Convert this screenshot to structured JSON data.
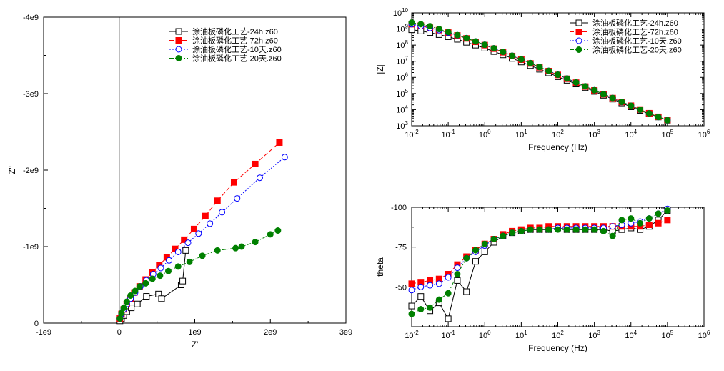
{
  "legend_labels": [
    "涂油板磷化工艺-24h.z60",
    "涂油板磷化工艺-72h.z60",
    "涂油板磷化工艺-10天.z60",
    "涂油板磷化工艺-20天.z60"
  ],
  "series_style": [
    {
      "color": "#000000",
      "marker": "square-open",
      "dash": ""
    },
    {
      "color": "#ff0000",
      "marker": "square-filled",
      "dash": "6,3"
    },
    {
      "color": "#0000ff",
      "marker": "circle-open",
      "dash": "2,2"
    },
    {
      "color": "#008000",
      "marker": "circle-filled",
      "dash": "6,2,2,2"
    }
  ],
  "chart_data": [
    {
      "type": "scatter",
      "xlabel": "Z'",
      "ylabel": "Z''",
      "xlim": [
        -1000000000.0,
        3000000000.0
      ],
      "ylim": [
        0,
        -4000000000.0
      ],
      "x_ticks": [
        -1000000000.0,
        0,
        1000000000.0,
        2000000000.0,
        3000000000.0
      ],
      "x_tick_labels": [
        "-1e9",
        "0",
        "1e9",
        "2e9",
        "3e9"
      ],
      "y_ticks": [
        0,
        -1000000000.0,
        -2000000000.0,
        -3000000000.0,
        -4000000000.0
      ],
      "y_tick_labels": [
        "0",
        "-1e9",
        "-2e9",
        "-3e9",
        "-4e9"
      ],
      "series": [
        {
          "x": [
            10000000.0,
            30000000.0,
            60000000.0,
            100000000.0,
            160000000.0,
            240000000.0,
            360000000.0,
            520000000.0,
            560000000.0,
            820000000.0,
            840000000.0,
            880000000.0
          ],
          "y": [
            -30000000.0,
            -60000000.0,
            -100000000.0,
            -150000000.0,
            -200000000.0,
            -250000000.0,
            -350000000.0,
            -380000000.0,
            -320000000.0,
            -500000000.0,
            -550000000.0,
            -950000000.0
          ]
        },
        {
          "x": [
            10000000.0,
            30000000.0,
            60000000.0,
            100000000.0,
            150000000.0,
            200000000.0,
            270000000.0,
            350000000.0,
            440000000.0,
            530000000.0,
            630000000.0,
            740000000.0,
            860000000.0,
            990000000.0,
            1140000000.0,
            1300000000.0,
            1520000000.0,
            1800000000.0,
            2120000000.0
          ],
          "y": [
            -60000000.0,
            -120000000.0,
            -180000000.0,
            -250000000.0,
            -320000000.0,
            -400000000.0,
            -480000000.0,
            -570000000.0,
            -660000000.0,
            -760000000.0,
            -860000000.0,
            -970000000.0,
            -1090000000.0,
            -1230000000.0,
            -1400000000.0,
            -1600000000.0,
            -1840000000.0,
            -2080000000.0,
            -2360000000.0
          ]
        },
        {
          "x": [
            10000000.0,
            30000000.0,
            60000000.0,
            100000000.0,
            150000000.0,
            210000000.0,
            280000000.0,
            360000000.0,
            450000000.0,
            550000000.0,
            660000000.0,
            780000000.0,
            910000000.0,
            1050000000.0,
            1200000000.0,
            1360000000.0,
            1560000000.0,
            1860000000.0,
            2190000000.0
          ],
          "y": [
            -60000000.0,
            -120000000.0,
            -180000000.0,
            -250000000.0,
            -320000000.0,
            -400000000.0,
            -480000000.0,
            -560000000.0,
            -640000000.0,
            -720000000.0,
            -820000000.0,
            -930000000.0,
            -1050000000.0,
            -1170000000.0,
            -1300000000.0,
            -1450000000.0,
            -1630000000.0,
            -1900000000.0,
            -2170000000.0
          ]
        },
        {
          "x": [
            10000000.0,
            30000000.0,
            60000000.0,
            100000000.0,
            150000000.0,
            210000000.0,
            270000000.0,
            350000000.0,
            440000000.0,
            540000000.0,
            650000000.0,
            780000000.0,
            930000000.0,
            1100000000.0,
            1300000000.0,
            1540000000.0,
            1620000000.0,
            1800000000.0,
            2000000000.0,
            2100000000.0
          ],
          "y": [
            -60000000.0,
            -130000000.0,
            -200000000.0,
            -280000000.0,
            -360000000.0,
            -420000000.0,
            -480000000.0,
            -520000000.0,
            -580000000.0,
            -620000000.0,
            -680000000.0,
            -740000000.0,
            -800000000.0,
            -880000000.0,
            -950000000.0,
            -980000000.0,
            -1000000000.0,
            -1060000000.0,
            -1160000000.0,
            -1210000000.0
          ]
        }
      ]
    },
    {
      "type": "line",
      "scale": "log-log",
      "xlabel": "Frequency (Hz)",
      "ylabel": "|Z|",
      "xlim": [
        0.01,
        1000000
      ],
      "ylim": [
        1000,
        10000000000
      ],
      "x_tick_labels": [
        "10^-2",
        "10^-1",
        "10^0",
        "10^1",
        "10^2",
        "10^3",
        "10^4",
        "10^5",
        "10^6"
      ],
      "y_tick_labels": [
        "10^3",
        "10^4",
        "10^5",
        "10^6",
        "10^7",
        "10^8",
        "10^9",
        "10^10"
      ],
      "series": [
        {
          "x": [
            0.01,
            0.0178,
            0.0316,
            0.0562,
            0.1,
            0.178,
            0.316,
            0.562,
            1,
            1.78,
            3.16,
            5.62,
            10,
            17.8,
            31.6,
            56.2,
            100,
            178,
            316,
            562,
            1000,
            1780,
            3160,
            5620,
            10000,
            17800,
            31600,
            56200,
            100000
          ],
          "y": [
            900000000.0,
            750000000.0,
            600000000.0,
            450000000.0,
            330000000.0,
            230000000.0,
            150000000.0,
            100000000.0,
            65000000.0,
            40000000.0,
            25000000.0,
            15000000.0,
            9000000.0,
            5400000.0,
            3200000.0,
            1900000.0,
            1100000.0,
            660000.0,
            390000.0,
            230000.0,
            135000.0,
            78000.0,
            45000.0,
            26000.0,
            15000.0,
            9000.0,
            5500.0,
            3500.0,
            2200.0
          ]
        },
        {
          "x": [
            0.01,
            0.0178,
            0.0316,
            0.0562,
            0.1,
            0.178,
            0.316,
            0.562,
            1,
            1.78,
            3.16,
            5.62,
            10,
            17.8,
            31.6,
            56.2,
            100,
            178,
            316,
            562,
            1000,
            1780,
            3160,
            5620,
            10000,
            17800,
            31600,
            56200,
            100000
          ],
          "y": [
            2000000000.0,
            1600000000.0,
            1200000000.0,
            850000000.0,
            600000000.0,
            400000000.0,
            260000000.0,
            160000000.0,
            100000000.0,
            60000000.0,
            36000000.0,
            21000000.0,
            12500000.0,
            7300000.0,
            4200000.0,
            2450000.0,
            1420000.0,
            820000.0,
            470000.0,
            270000.0,
            156000.0,
            90000.0,
            52000.0,
            30000.0,
            17500.0,
            10200.0,
            6000.0,
            3600.0,
            2300.0
          ]
        },
        {
          "x": [
            0.01,
            0.0178,
            0.0316,
            0.0562,
            0.1,
            0.178,
            0.316,
            0.562,
            1,
            1.78,
            3.16,
            5.62,
            10,
            17.8,
            31.6,
            56.2,
            100,
            178,
            316,
            562,
            1000,
            1780,
            3160,
            5620,
            10000,
            17800,
            31600,
            56200,
            100000
          ],
          "y": [
            2000000000.0,
            1500000000.0,
            1150000000.0,
            850000000.0,
            600000000.0,
            410000000.0,
            270000000.0,
            170000000.0,
            105000000.0,
            63000000.0,
            38000000.0,
            22000000.0,
            13000000.0,
            7600000.0,
            4400000.0,
            2550000.0,
            1470000.0,
            850000.0,
            490000.0,
            280000.0,
            160000.0,
            92000.0,
            53000.0,
            30500.0,
            17500.0,
            10000.0,
            5900.0,
            3500.0,
            2200.0
          ]
        },
        {
          "x": [
            0.01,
            0.0178,
            0.0316,
            0.0562,
            0.1,
            0.178,
            0.316,
            0.562,
            1,
            1.78,
            3.16,
            5.62,
            10,
            17.8,
            31.6,
            56.2,
            100,
            178,
            316,
            562,
            1000,
            1780,
            3160,
            5620,
            10000,
            17800,
            31600,
            56200,
            100000
          ],
          "y": [
            2500000000.0,
            2000000000.0,
            1500000000.0,
            1000000000.0,
            650000000.0,
            420000000.0,
            270000000.0,
            170000000.0,
            105000000.0,
            63000000.0,
            38000000.0,
            22000000.0,
            13000000.0,
            7600000.0,
            4400000.0,
            2550000.0,
            1470000.0,
            850000.0,
            490000.0,
            280000.0,
            160000.0,
            92000.0,
            53000.0,
            30500.0,
            17500.0,
            10000.0,
            5900.0,
            3500.0,
            2200.0
          ]
        }
      ]
    },
    {
      "type": "line",
      "scale": "log-x",
      "xlabel": "Frequency (Hz)",
      "ylabel": "theta",
      "xlim": [
        0.01,
        1000000
      ],
      "ylim": [
        -25,
        -100
      ],
      "x_tick_labels": [
        "10^-2",
        "10^-1",
        "10^0",
        "10^1",
        "10^2",
        "10^3",
        "10^4",
        "10^5",
        "10^6"
      ],
      "y_ticks": [
        -50,
        -75,
        -100
      ],
      "y_tick_labels": [
        "-50",
        "-75",
        "-100"
      ],
      "series": [
        {
          "x": [
            0.01,
            0.0178,
            0.0316,
            0.0562,
            0.1,
            0.178,
            0.316,
            0.562,
            1,
            1.78,
            3.16,
            5.62,
            10,
            17.8,
            31.6,
            56.2,
            100,
            178,
            316,
            562,
            1000,
            1780,
            3160,
            5620,
            10000,
            17800,
            31600,
            56200,
            100000
          ],
          "y": [
            -38,
            -44,
            -35,
            -40,
            -30,
            -54,
            -47,
            -66,
            -72,
            -78,
            -82,
            -84,
            -85,
            -86,
            -86,
            -86,
            -87,
            -86,
            -86,
            -86,
            -86,
            -86,
            -85,
            -86,
            -87,
            -86,
            -88,
            -92,
            -98
          ]
        },
        {
          "x": [
            0.01,
            0.0178,
            0.0316,
            0.0562,
            0.1,
            0.178,
            0.316,
            0.562,
            1,
            1.78,
            3.16,
            5.62,
            10,
            17.8,
            31.6,
            56.2,
            100,
            178,
            316,
            562,
            1000,
            1780,
            3160,
            5620,
            10000,
            17800,
            31600,
            56200,
            100000
          ],
          "y": [
            -52,
            -53,
            -54,
            -55,
            -58,
            -64,
            -69,
            -73,
            -77,
            -80,
            -83,
            -85,
            -86,
            -87,
            -87,
            -88,
            -88,
            -88,
            -88,
            -88,
            -88,
            -88,
            -88,
            -88,
            -88,
            -88,
            -89,
            -90,
            -92
          ]
        },
        {
          "x": [
            0.01,
            0.0178,
            0.0316,
            0.0562,
            0.1,
            0.178,
            0.316,
            0.562,
            1,
            1.78,
            3.16,
            5.62,
            10,
            17.8,
            31.6,
            56.2,
            100,
            178,
            316,
            562,
            1000,
            1780,
            3160,
            5620,
            10000,
            17800,
            31600,
            56200,
            100000
          ],
          "y": [
            -48,
            -50,
            -51,
            -52,
            -56,
            -62,
            -68,
            -72,
            -76,
            -80,
            -82,
            -84,
            -85,
            -86,
            -86,
            -86,
            -87,
            -87,
            -87,
            -87,
            -87,
            -87,
            -88,
            -89,
            -90,
            -91,
            -93,
            -96,
            -99
          ]
        },
        {
          "x": [
            0.01,
            0.0178,
            0.0316,
            0.0562,
            0.1,
            0.178,
            0.316,
            0.562,
            1,
            1.78,
            3.16,
            5.62,
            10,
            17.8,
            31.6,
            56.2,
            100,
            178,
            316,
            562,
            1000,
            1780,
            3160,
            5620,
            10000,
            17800,
            31600,
            56200,
            100000
          ],
          "y": [
            -33,
            -36,
            -37,
            -42,
            -46,
            -58,
            -68,
            -73,
            -77,
            -80,
            -82,
            -84,
            -85,
            -86,
            -86,
            -86,
            -86,
            -86,
            -86,
            -86,
            -86,
            -85,
            -82,
            -92,
            -93,
            -90,
            -93,
            -96,
            -98
          ]
        }
      ]
    }
  ]
}
